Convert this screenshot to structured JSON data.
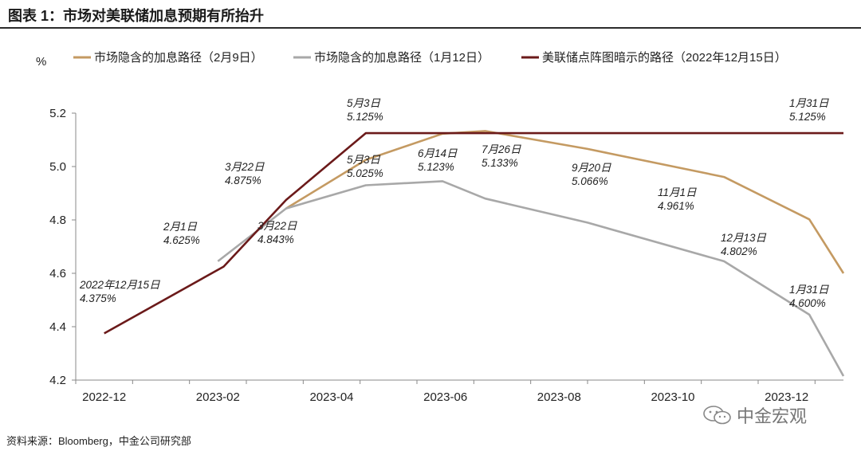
{
  "title": "图表 1：市场对美联储加息预期有所抬升",
  "source": "资料来源：Bloomberg，中金公司研究部",
  "watermark": "中金宏观",
  "chart_data": {
    "type": "line",
    "ylabel": "%",
    "ylim": [
      4.2,
      5.2
    ],
    "yticks": [
      "4.2",
      "4.4",
      "4.6",
      "4.8",
      "5.0",
      "5.2"
    ],
    "xlim": [
      0,
      13.5
    ],
    "xticks": [
      {
        "label": "2022-12",
        "pos": 0.5
      },
      {
        "label": "2023-02",
        "pos": 2.5
      },
      {
        "label": "2023-04",
        "pos": 4.5
      },
      {
        "label": "2023-06",
        "pos": 6.5
      },
      {
        "label": "2023-08",
        "pos": 8.5
      },
      {
        "label": "2023-10",
        "pos": 10.5
      },
      {
        "label": "2023-12",
        "pos": 12.5
      }
    ],
    "series": [
      {
        "name": "市场隐含的加息路径（2月9日）",
        "color": "#c49a62",
        "x": [
          3.7,
          5.1,
          6.45,
          7.2,
          9.0,
          11.4,
          12.9,
          13.5
        ],
        "values": [
          4.843,
          5.025,
          5.123,
          5.133,
          5.066,
          4.961,
          4.802,
          4.6
        ]
      },
      {
        "name": "市场隐含的加息路径（1月12日）",
        "color": "#a8a8a8",
        "x": [
          2.5,
          3.7,
          5.1,
          6.45,
          7.2,
          9.0,
          11.4,
          12.9,
          13.5
        ],
        "values": [
          4.645,
          4.843,
          4.93,
          4.945,
          4.88,
          4.79,
          4.645,
          4.445,
          4.215
        ]
      },
      {
        "name": "美联储点阵图暗示的路径（2022年12月15日）",
        "color": "#6b1a1a",
        "x": [
          0.5,
          2.6,
          3.7,
          5.1,
          6.45,
          7.2,
          9.0,
          11.4,
          12.9,
          13.5
        ],
        "values": [
          4.375,
          4.625,
          4.875,
          5.125,
          5.125,
          5.125,
          5.125,
          5.125,
          5.125,
          5.125
        ]
      }
    ],
    "annotations": [
      {
        "date": "2022年12月15日",
        "value": "4.375%"
      },
      {
        "date": "2月1日",
        "value": "4.625%"
      },
      {
        "date": "3月22日",
        "value": "4.875%"
      },
      {
        "date": "3月22日",
        "value": "4.843%"
      },
      {
        "date": "5月3日",
        "value": "5.125%"
      },
      {
        "date": "5月3日",
        "value": "5.025%"
      },
      {
        "date": "6月14日",
        "value": "5.123%"
      },
      {
        "date": "7月26日",
        "value": "5.133%"
      },
      {
        "date": "9月20日",
        "value": "5.066%"
      },
      {
        "date": "11月1日",
        "value": "4.961%"
      },
      {
        "date": "12月13日",
        "value": "4.802%"
      },
      {
        "date": "1月31日",
        "value": "5.125%"
      },
      {
        "date": "1月31日",
        "value": "4.600%"
      }
    ]
  }
}
